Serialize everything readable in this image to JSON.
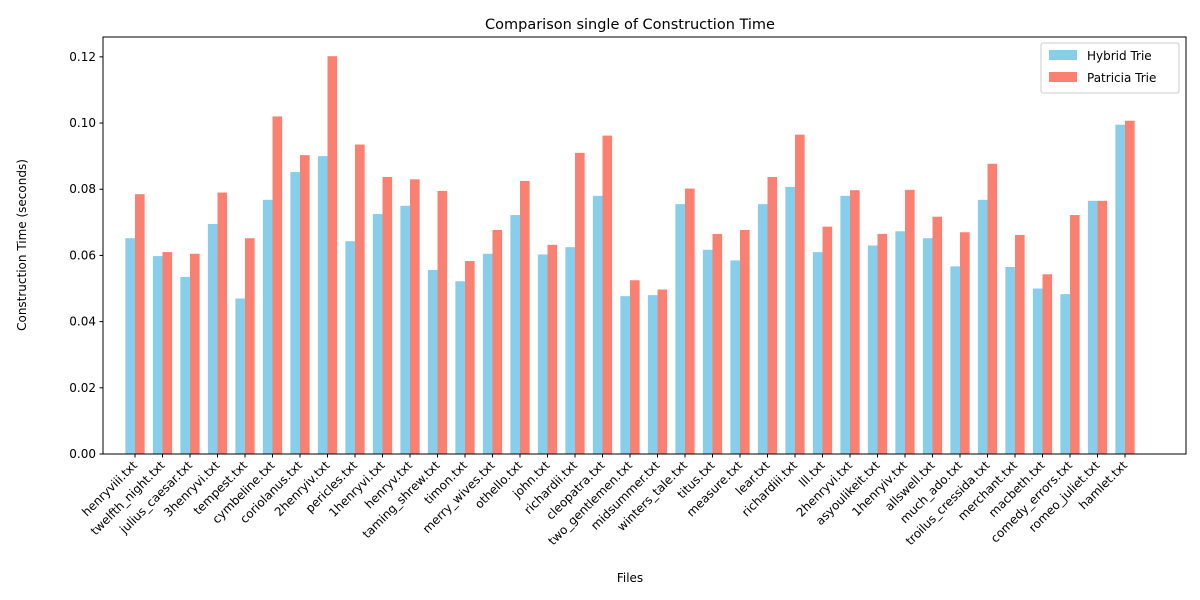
{
  "chart_data": {
    "type": "bar",
    "title": "Comparison single of Construction Time",
    "xlabel": "Files",
    "ylabel": "Construction Time (seconds)",
    "ylim": [
      0,
      0.126
    ],
    "yticks": [
      0.0,
      0.02,
      0.04,
      0.06,
      0.08,
      0.1,
      0.12
    ],
    "ytick_labels": [
      "0.00",
      "0.02",
      "0.04",
      "0.06",
      "0.08",
      "0.10",
      "0.12"
    ],
    "grid": false,
    "legend_position": "top-right",
    "categories": [
      "henryviii.txt",
      "twelfth_night.txt",
      "julius_caesar.txt",
      "3henryvi.txt",
      "tempest.txt",
      "cymbeline.txt",
      "coriolanus.txt",
      "2henryiv.txt",
      "pericles.txt",
      "1henryvi.txt",
      "henryv.txt",
      "taming_shrew.txt",
      "timon.txt",
      "merry_wives.txt",
      "othello.txt",
      "john.txt",
      "richardii.txt",
      "cleopatra.txt",
      "two_gentlemen.txt",
      "midsummer.txt",
      "winters_tale.txt",
      "titus.txt",
      "measure.txt",
      "lear.txt",
      "richardiii.txt",
      "lll.txt",
      "2henryvi.txt",
      "asyoulikeit.txt",
      "1henryiv.txt",
      "allswell.txt",
      "much_ado.txt",
      "troilus_cressida.txt",
      "merchant.txt",
      "macbeth.txt",
      "comedy_errors.txt",
      "romeo_juliet.txt",
      "hamlet.txt"
    ],
    "series": [
      {
        "name": "Hybrid Trie",
        "color": "#87ceeb",
        "values": [
          0.0652,
          0.0598,
          0.0535,
          0.0695,
          0.047,
          0.0768,
          0.0852,
          0.09,
          0.0643,
          0.0725,
          0.075,
          0.0556,
          0.0522,
          0.0605,
          0.0722,
          0.0603,
          0.0625,
          0.078,
          0.0477,
          0.048,
          0.0755,
          0.0617,
          0.0585,
          0.0755,
          0.0807,
          0.061,
          0.078,
          0.063,
          0.0673,
          0.0652,
          0.0567,
          0.0768,
          0.0565,
          0.05,
          0.0483,
          0.0765,
          0.0995
        ]
      },
      {
        "name": "Patricia Trie",
        "color": "#fa8072",
        "values": [
          0.0785,
          0.061,
          0.0605,
          0.079,
          0.0652,
          0.102,
          0.0903,
          0.1202,
          0.0935,
          0.0837,
          0.083,
          0.0795,
          0.0583,
          0.0677,
          0.0825,
          0.0632,
          0.091,
          0.0962,
          0.0525,
          0.0497,
          0.0802,
          0.0665,
          0.0677,
          0.0837,
          0.0965,
          0.0687,
          0.0797,
          0.0665,
          0.0798,
          0.0717,
          0.067,
          0.0877,
          0.0662,
          0.0543,
          0.0722,
          0.0765,
          0.1007
        ]
      }
    ]
  }
}
